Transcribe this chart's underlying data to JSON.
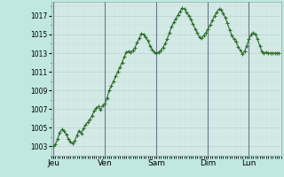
{
  "title": "",
  "xlabel": "",
  "ylabel": "",
  "bg_color": "#c0e8e0",
  "plot_bg_color": "#d4ece8",
  "line_color": "#2d6e2d",
  "marker": "+",
  "marker_size": 2.5,
  "line_width": 0.8,
  "markeredgewidth": 0.8,
  "yticks": [
    1003,
    1005,
    1007,
    1009,
    1011,
    1013,
    1015,
    1017
  ],
  "ylim": [
    1002.0,
    1018.5
  ],
  "xtick_labels": [
    "Jeu",
    "Ven",
    "Sam",
    "Dim",
    "Lun"
  ],
  "vline_color": "#667788",
  "grid_color": "#b8ccc8",
  "grid_minor_color": "#ccddd8",
  "pressure_data": [
    1003.0,
    1003.2,
    1003.8,
    1004.5,
    1004.8,
    1004.7,
    1004.3,
    1003.8,
    1003.5,
    1003.3,
    1003.6,
    1004.2,
    1004.7,
    1004.4,
    1004.9,
    1005.3,
    1005.6,
    1005.9,
    1006.3,
    1006.8,
    1007.1,
    1007.3,
    1006.9,
    1007.4,
    1007.6,
    1008.2,
    1009.0,
    1009.5,
    1010.0,
    1010.5,
    1011.0,
    1011.5,
    1012.0,
    1012.6,
    1013.1,
    1013.2,
    1013.1,
    1013.3,
    1013.6,
    1014.1,
    1014.6,
    1015.1,
    1015.0,
    1014.7,
    1014.3,
    1013.8,
    1013.4,
    1013.1,
    1013.0,
    1013.1,
    1013.3,
    1013.6,
    1014.0,
    1014.5,
    1015.2,
    1015.8,
    1016.3,
    1016.7,
    1017.1,
    1017.5,
    1017.8,
    1017.7,
    1017.4,
    1017.0,
    1016.6,
    1016.1,
    1015.6,
    1015.2,
    1014.7,
    1014.6,
    1014.9,
    1015.2,
    1015.6,
    1016.0,
    1016.5,
    1017.0,
    1017.4,
    1017.7,
    1017.6,
    1017.3,
    1016.8,
    1016.2,
    1015.5,
    1014.9,
    1014.5,
    1014.2,
    1013.7,
    1013.3,
    1012.9,
    1013.2,
    1013.8,
    1014.5,
    1015.0,
    1015.2,
    1015.0,
    1014.5,
    1013.8,
    1013.2,
    1013.0,
    1013.1,
    1013.0,
    1013.0,
    1013.0,
    1013.0,
    1013.0,
    1013.0
  ],
  "n_days": 5,
  "day_starts_idx": [
    0,
    24,
    48,
    72,
    91
  ],
  "figsize": [
    3.2,
    2.0
  ],
  "dpi": 100
}
